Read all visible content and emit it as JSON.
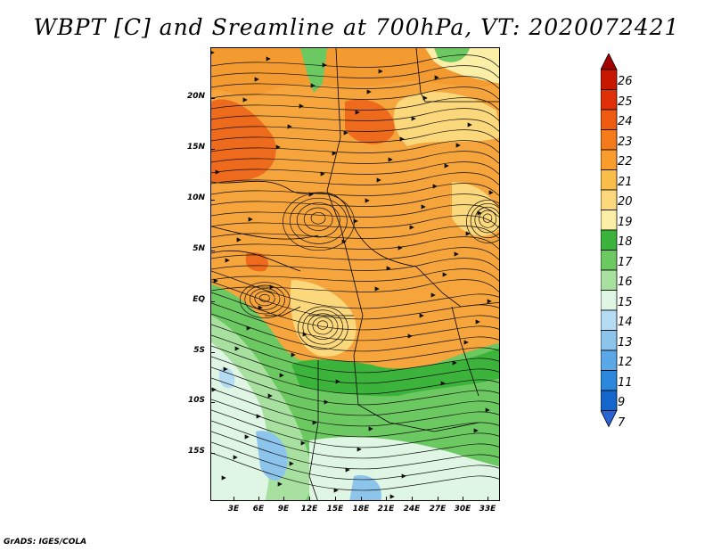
{
  "title": "WBPT [C] and Sreamline at 700hPa, VT: 2020072421",
  "credit": "GrADS: IGES/COLA",
  "map": {
    "lat_labels": [
      "20N",
      "15N",
      "10N",
      "5N",
      "EQ",
      "5S",
      "10S",
      "15S"
    ],
    "lon_labels": [
      "3E",
      "6E",
      "9E",
      "12E",
      "15E",
      "18E",
      "21E",
      "24E",
      "27E",
      "30E",
      "33E"
    ]
  },
  "colorbar": {
    "labels": [
      "26",
      "25",
      "24",
      "23",
      "22",
      "21",
      "20",
      "19",
      "18",
      "17",
      "16",
      "15",
      "14",
      "13",
      "12",
      "11",
      "9",
      "7"
    ],
    "colors": [
      "#a50000",
      "#c81800",
      "#e03008",
      "#ee5a10",
      "#f47a1a",
      "#f89c2c",
      "#fbbd4a",
      "#fcd87c",
      "#fbeea6",
      "#3cb43c",
      "#6cc860",
      "#a8e0a0",
      "#e0f6e4",
      "#b6dcf4",
      "#8cc4ec",
      "#5aa8e8",
      "#2c88dc",
      "#1466cc",
      "#2a64d4"
    ]
  }
}
